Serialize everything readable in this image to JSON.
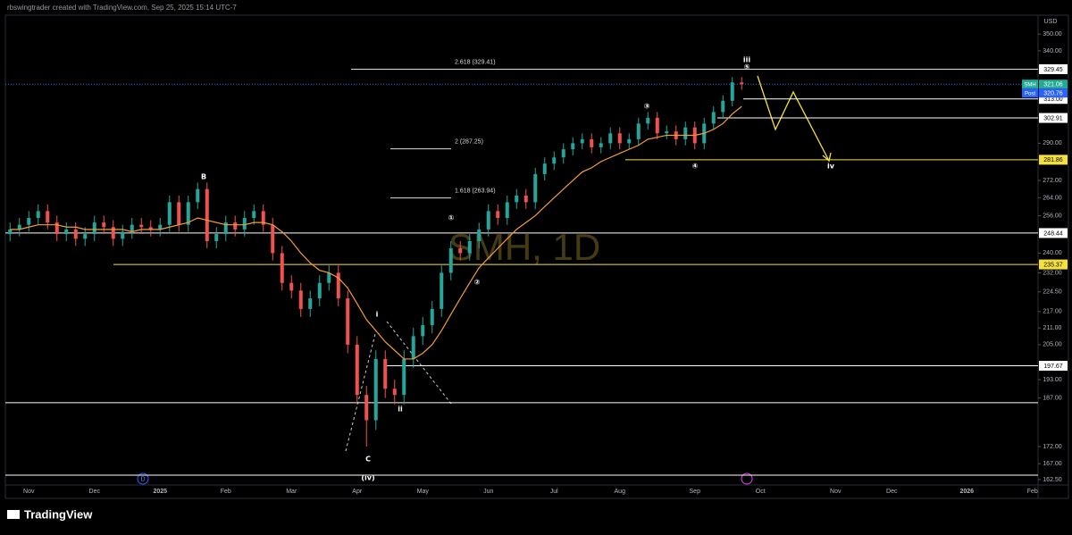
{
  "chart_data": {
    "type": "candlestick",
    "header": "rbswingtrader created with TradingView.com, Sep 25, 2025 15:14 UTC-7",
    "currency": "USD",
    "watermark": "SMH, 1D",
    "footer": "TradingView",
    "event_marker": "D",
    "scale": "log",
    "ylim": [
      157.8,
      361
    ],
    "yticks": [
      {
        "value": 350,
        "label": "350.00"
      },
      {
        "value": 340,
        "label": "340.00"
      },
      {
        "value": 290,
        "label": "290.00"
      },
      {
        "value": 272,
        "label": "272.00"
      },
      {
        "value": 264,
        "label": "264.00"
      },
      {
        "value": 256,
        "label": "256.00"
      },
      {
        "value": 240,
        "label": "240.00"
      },
      {
        "value": 232,
        "label": "232.00"
      },
      {
        "value": 224.5,
        "label": "224.50"
      },
      {
        "value": 217,
        "label": "217.00"
      },
      {
        "value": 211,
        "label": "211.00"
      },
      {
        "value": 205,
        "label": "205.00"
      },
      {
        "value": 193,
        "label": "193.00"
      },
      {
        "value": 187,
        "label": "187.00"
      },
      {
        "value": 172,
        "label": "172.00"
      },
      {
        "value": 167,
        "label": "167.00"
      },
      {
        "value": 162.5,
        "label": "162.50"
      }
    ],
    "categories": [
      null,
      null,
      "Nov",
      null,
      null,
      null,
      null,
      null,
      null,
      "Dec",
      null,
      null,
      null,
      null,
      null,
      null,
      "2025",
      null,
      null,
      null,
      null,
      null,
      null,
      "Feb",
      null,
      null,
      null,
      null,
      null,
      null,
      "Mar",
      null,
      null,
      null,
      null,
      null,
      null,
      "Apr",
      null,
      null,
      null,
      null,
      null,
      null,
      "May",
      null,
      null,
      null,
      null,
      null,
      null,
      "Jun",
      null,
      null,
      null,
      null,
      null,
      null,
      "Jul",
      null,
      null,
      null,
      null,
      null,
      null,
      "Aug",
      null,
      null,
      null,
      null,
      null,
      null,
      null,
      "Sep",
      null,
      null,
      null,
      null,
      null,
      null,
      "Oct",
      null,
      null,
      null,
      null,
      null,
      null,
      null,
      "Nov",
      null,
      null,
      null,
      null,
      null,
      "Dec",
      null,
      null,
      null,
      null,
      null,
      null,
      null,
      "2026",
      null,
      null,
      null,
      null,
      null,
      null,
      "Feb"
    ],
    "open": [
      248,
      250,
      252,
      255,
      258,
      253,
      248,
      250,
      246,
      248,
      253,
      251,
      246,
      249,
      252,
      251,
      250,
      252,
      262,
      252,
      262,
      268,
      245,
      248,
      253,
      250,
      255,
      258,
      252,
      240,
      228,
      225,
      218,
      222,
      228,
      232,
      222,
      205,
      188,
      180,
      200,
      190,
      188,
      200,
      208,
      212,
      218,
      232,
      242,
      240,
      245,
      250,
      258,
      255,
      262,
      265,
      262,
      275,
      280,
      283,
      287,
      290,
      292,
      288,
      290,
      295,
      290,
      292,
      300,
      303,
      295,
      296,
      292,
      298,
      290,
      300,
      306,
      312,
      322,
      null,
      null,
      null,
      null,
      null,
      null,
      null,
      null,
      null,
      null,
      null,
      null,
      null,
      null,
      null,
      null,
      null,
      null,
      null,
      null,
      null,
      null,
      null,
      null,
      null,
      null,
      null,
      null,
      null,
      null,
      null
    ],
    "high": [
      253,
      255,
      258,
      261,
      261,
      256,
      253,
      253,
      251,
      256,
      256,
      254,
      252,
      255,
      255,
      254,
      255,
      265,
      265,
      265,
      271,
      271,
      251,
      256,
      256,
      258,
      261,
      261,
      255,
      243,
      231,
      228,
      225,
      231,
      235,
      235,
      225,
      208,
      191,
      203,
      203,
      193,
      203,
      211,
      215,
      221,
      235,
      245,
      245,
      248,
      253,
      261,
      261,
      265,
      268,
      268,
      278,
      283,
      286,
      290,
      293,
      295,
      295,
      293,
      298,
      298,
      295,
      303,
      306,
      306,
      299,
      299,
      301,
      301,
      303,
      309,
      315,
      325,
      325,
      null,
      null,
      null,
      null,
      null,
      null,
      null,
      null,
      null,
      null,
      null,
      null,
      null,
      null,
      null,
      null,
      null,
      null,
      null,
      null,
      null,
      null,
      null,
      null,
      null,
      null,
      null,
      null,
      null,
      null,
      null
    ],
    "low": [
      245,
      247,
      249,
      252,
      250,
      245,
      245,
      243,
      243,
      245,
      248,
      243,
      243,
      246,
      248,
      247,
      247,
      249,
      249,
      249,
      259,
      242,
      242,
      245,
      247,
      247,
      252,
      249,
      237,
      225,
      222,
      215,
      215,
      219,
      225,
      219,
      202,
      185,
      172,
      177,
      187,
      185,
      185,
      197,
      205,
      209,
      215,
      229,
      237,
      237,
      242,
      247,
      252,
      252,
      259,
      259,
      259,
      272,
      277,
      280,
      284,
      287,
      285,
      285,
      287,
      287,
      287,
      289,
      297,
      292,
      292,
      289,
      289,
      287,
      287,
      297,
      303,
      309,
      318,
      null,
      null,
      null,
      null,
      null,
      null,
      null,
      null,
      null,
      null,
      null,
      null,
      null,
      null,
      null,
      null,
      null,
      null,
      null,
      null,
      null,
      null,
      null,
      null,
      null,
      null,
      null,
      null,
      null,
      null,
      null
    ],
    "close": [
      250,
      252,
      255,
      258,
      253,
      248,
      250,
      246,
      248,
      253,
      251,
      246,
      249,
      252,
      251,
      250,
      252,
      262,
      252,
      262,
      268,
      245,
      248,
      253,
      250,
      255,
      258,
      252,
      240,
      228,
      225,
      218,
      222,
      228,
      232,
      222,
      205,
      188,
      180,
      200,
      190,
      188,
      200,
      208,
      212,
      218,
      232,
      242,
      240,
      245,
      250,
      258,
      255,
      262,
      265,
      262,
      275,
      280,
      283,
      287,
      290,
      292,
      288,
      290,
      295,
      290,
      292,
      300,
      303,
      295,
      296,
      292,
      298,
      290,
      300,
      306,
      312,
      322,
      321.06,
      null,
      null,
      null,
      null,
      null,
      null,
      null,
      null,
      null,
      null,
      null,
      null,
      null,
      null,
      null,
      null,
      null,
      null,
      null,
      null,
      null,
      null,
      null,
      null,
      null,
      null,
      null,
      null,
      null,
      null,
      null
    ],
    "up_color": "#26a69a",
    "down_color": "#ef5350",
    "moving_average": {
      "color": "#f39c3c",
      "values": [
        250,
        250,
        251,
        252,
        252,
        252,
        251,
        251,
        250,
        250,
        250,
        250,
        250,
        249,
        250,
        250,
        250,
        251,
        252,
        253,
        255,
        254,
        253,
        252,
        252,
        252,
        253,
        253,
        252,
        249,
        245,
        240,
        236,
        233,
        232,
        230,
        226,
        220,
        214,
        210,
        206,
        203,
        200,
        200,
        202,
        205,
        210,
        216,
        222,
        228,
        234,
        238,
        242,
        246,
        250,
        253,
        256,
        260,
        264,
        268,
        272,
        276,
        278,
        281,
        283,
        285,
        287,
        289,
        292,
        293,
        294,
        294,
        294,
        294,
        295,
        297,
        300,
        305,
        309,
        null,
        null,
        null,
        null,
        null,
        null,
        null,
        null,
        null,
        null,
        null,
        null,
        null,
        null,
        null,
        null,
        null,
        null,
        null,
        null,
        null,
        null,
        null,
        null,
        null,
        null,
        null,
        null,
        null,
        null,
        null
      ]
    },
    "levels": [
      329.45,
      {
        "value": 313,
        "label": "313.00"
      },
      302.91,
      281.86,
      248.44,
      235.37,
      197.67,
      185.5,
      163.75
    ],
    "level_colors": [
      "#ffffff",
      "#ffffff",
      "#ffffff",
      "#f5e13c",
      "#ffffff",
      "#f5e13c",
      "#ffffff",
      "#ffffff",
      "#ffffff"
    ],
    "fibs": [
      {
        "label": "2.618 (329.41)",
        "value": 329.41
      },
      {
        "label": "2 (287.25)",
        "value": 287.25
      },
      {
        "label": "1.618 (263.94)",
        "value": 263.94
      }
    ],
    "last_price": {
      "name": "SMH",
      "value": 321.06,
      "color": "#22ab94"
    },
    "post_price": {
      "name": "Post",
      "value": 320.76,
      "color": "#2962ff"
    },
    "waves": [
      "B",
      "①",
      "②",
      "③",
      "④",
      "⑤",
      "iii",
      "i",
      "ii",
      "C",
      "(iv)",
      "iv"
    ]
  }
}
